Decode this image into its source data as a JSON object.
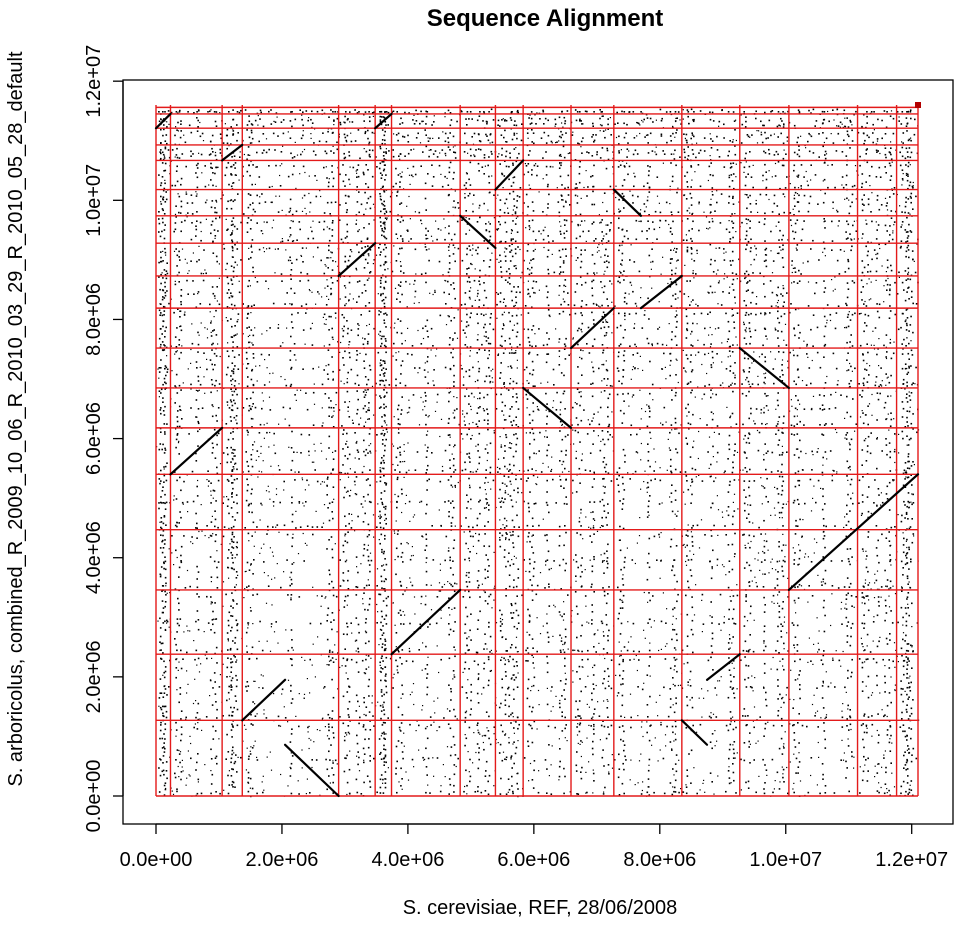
{
  "chart_data": {
    "type": "scatter",
    "title": "Sequence Alignment",
    "xlabel": "S. cerevisiae, REF, 28/06/2008",
    "ylabel": "S. arboricolus, combined_R_2009_10_06_R_2010_03_29_R_2010_05_28_default",
    "xlim": [
      0,
      12100000
    ],
    "ylim": [
      0,
      11600000
    ],
    "x_ticks": [
      0,
      2000000,
      4000000,
      6000000,
      8000000,
      10000000,
      12000000
    ],
    "x_tick_labels": [
      "0.0e+00",
      "2.0e+06",
      "4.0e+06",
      "6.0e+06",
      "8.0e+06",
      "1.0e+07",
      "1.2e+07"
    ],
    "y_ticks": [
      0,
      2000000,
      4000000,
      6000000,
      8000000,
      10000000,
      12000000
    ],
    "y_tick_labels": [
      "0.0e+00",
      "2.0e+06",
      "4.0e+06",
      "6.0e+06",
      "8.0e+06",
      "1.0e+07",
      "1.2e+07"
    ],
    "reference_boundaries_x": [
      0,
      230000,
      1050000,
      1370000,
      2900000,
      3480000,
      3740000,
      4830000,
      5390000,
      5830000,
      6590000,
      7270000,
      8350000,
      9270000,
      10050000,
      11140000,
      11760000,
      12100000
    ],
    "query_boundaries_y": [
      0,
      1270000,
      2380000,
      3460000,
      4470000,
      5400000,
      6180000,
      6850000,
      7520000,
      8190000,
      8730000,
      9280000,
      9740000,
      10180000,
      10670000,
      10930000,
      11210000,
      11450000,
      11560000
    ],
    "alignment_segments": [
      {
        "x": [
          0,
          230000
        ],
        "y": [
          11210000,
          11450000
        ]
      },
      {
        "x": [
          1050000,
          1370000
        ],
        "y": [
          10670000,
          10930000
        ]
      },
      {
        "x": [
          3480000,
          3740000
        ],
        "y": [
          11210000,
          11450000
        ]
      },
      {
        "x": [
          5390000,
          5830000
        ],
        "y": [
          10180000,
          10670000
        ]
      },
      {
        "x": [
          7270000,
          7700000
        ],
        "y": [
          10180000,
          9740000
        ]
      },
      {
        "x": [
          4830000,
          5390000
        ],
        "y": [
          9740000,
          9200000
        ]
      },
      {
        "x": [
          2900000,
          3480000
        ],
        "y": [
          8730000,
          9280000
        ]
      },
      {
        "x": [
          7700000,
          8350000
        ],
        "y": [
          8190000,
          8730000
        ]
      },
      {
        "x": [
          6590000,
          7270000
        ],
        "y": [
          7520000,
          8190000
        ]
      },
      {
        "x": [
          9270000,
          10050000
        ],
        "y": [
          7520000,
          6850000
        ]
      },
      {
        "x": [
          5830000,
          6590000
        ],
        "y": [
          6850000,
          6180000
        ]
      },
      {
        "x": [
          230000,
          1050000
        ],
        "y": [
          5400000,
          6180000
        ]
      },
      {
        "x": [
          10050000,
          12100000
        ],
        "y": [
          3460000,
          5400000
        ]
      },
      {
        "x": [
          3740000,
          4830000
        ],
        "y": [
          2380000,
          3460000
        ]
      },
      {
        "x": [
          1370000,
          2050000
        ],
        "y": [
          1270000,
          1950000
        ]
      },
      {
        "x": [
          8750000,
          9270000
        ],
        "y": [
          1950000,
          2380000
        ]
      },
      {
        "x": [
          8350000,
          8750000
        ],
        "y": [
          1270000,
          860000
        ]
      },
      {
        "x": [
          2050000,
          2900000
        ],
        "y": [
          860000,
          0
        ]
      }
    ],
    "grid": false,
    "legend": "none"
  }
}
